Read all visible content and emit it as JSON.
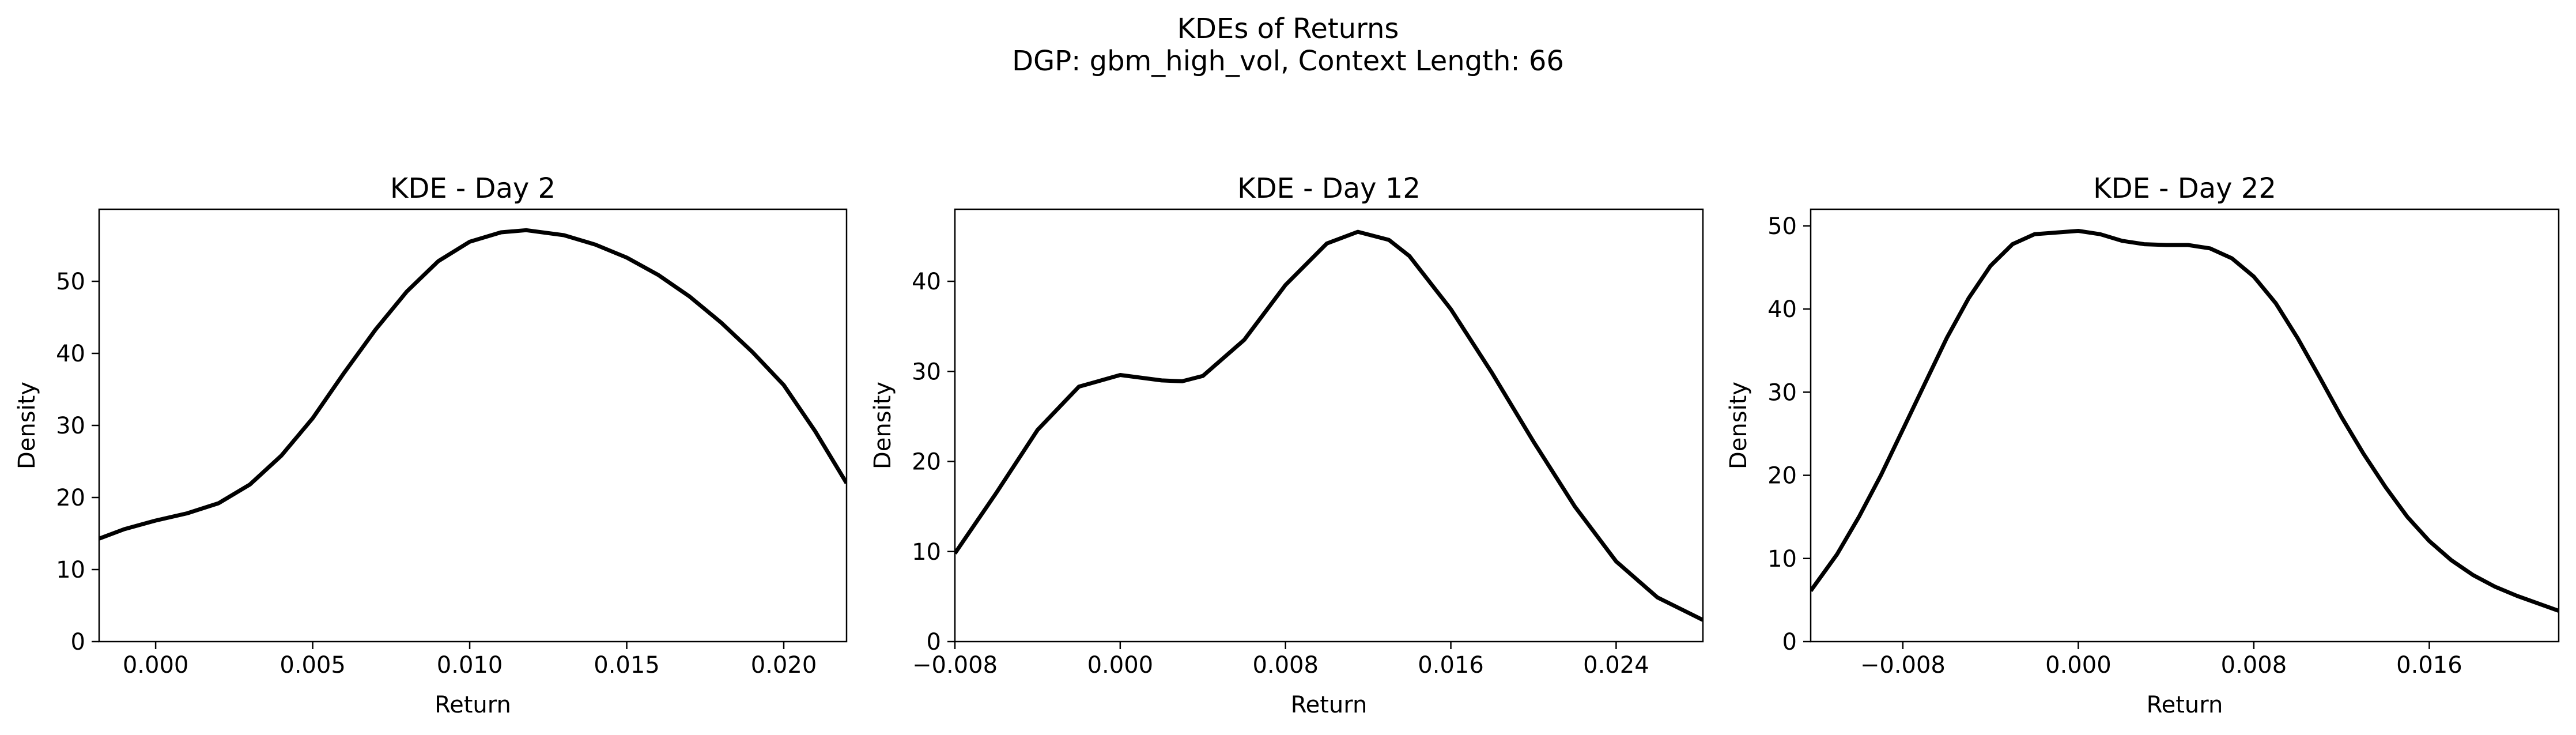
{
  "figure": {
    "title_line1": "KDEs of Returns",
    "title_line2": "DGP: gbm_high_vol, Context Length: 66"
  },
  "chart_data": [
    {
      "type": "line",
      "title": "KDE - Day 2",
      "xlabel": "Return",
      "ylabel": "Density",
      "xlim": [
        -0.0018,
        0.022
      ],
      "ylim": [
        0,
        60
      ],
      "xticks": [
        0.0,
        0.005,
        0.01,
        0.015,
        0.02
      ],
      "xtick_labels": [
        "0.000",
        "0.005",
        "0.010",
        "0.015",
        "0.020"
      ],
      "yticks": [
        0,
        10,
        20,
        30,
        40,
        50
      ],
      "ytick_labels": [
        "0",
        "10",
        "20",
        "30",
        "40",
        "50"
      ],
      "grid": false,
      "series": [
        {
          "color": "#000000",
          "x": [
            -0.0018,
            -0.001,
            0.0,
            0.001,
            0.002,
            0.003,
            0.004,
            0.005,
            0.006,
            0.007,
            0.008,
            0.009,
            0.01,
            0.011,
            0.0118,
            0.013,
            0.014,
            0.015,
            0.016,
            0.017,
            0.018,
            0.019,
            0.02,
            0.021,
            0.022
          ],
          "y": [
            14.3,
            15.6,
            16.8,
            17.8,
            19.2,
            21.8,
            25.8,
            31.0,
            37.3,
            43.3,
            48.6,
            52.8,
            55.5,
            56.8,
            57.1,
            56.4,
            55.1,
            53.3,
            50.9,
            47.9,
            44.3,
            40.2,
            35.6,
            29.2,
            22.0
          ]
        }
      ]
    },
    {
      "type": "line",
      "title": "KDE - Day 12",
      "xlabel": "Return",
      "ylabel": "Density",
      "xlim": [
        -0.008,
        0.0282
      ],
      "ylim": [
        0,
        48
      ],
      "xticks": [
        -0.008,
        0.0,
        0.008,
        0.016,
        0.024
      ],
      "xtick_labels": [
        "−0.008",
        "0.000",
        "0.008",
        "0.016",
        "0.024"
      ],
      "yticks": [
        0,
        10,
        20,
        30,
        40
      ],
      "ytick_labels": [
        "0",
        "10",
        "20",
        "30",
        "40"
      ],
      "grid": false,
      "series": [
        {
          "color": "#000000",
          "x": [
            -0.008,
            -0.006,
            -0.004,
            -0.002,
            0.0,
            0.002,
            0.003,
            0.004,
            0.006,
            0.008,
            0.01,
            0.0115,
            0.013,
            0.014,
            0.016,
            0.018,
            0.02,
            0.022,
            0.024,
            0.026,
            0.0282
          ],
          "y": [
            9.8,
            16.5,
            23.5,
            28.3,
            29.6,
            29.0,
            28.9,
            29.5,
            33.5,
            39.6,
            44.2,
            45.5,
            44.6,
            42.8,
            36.9,
            29.8,
            22.2,
            15.0,
            8.9,
            4.9,
            2.4
          ]
        }
      ]
    },
    {
      "type": "line",
      "title": "KDE - Day 22",
      "xlabel": "Return",
      "ylabel": "Density",
      "xlim": [
        -0.0122,
        0.0219
      ],
      "ylim": [
        0,
        52
      ],
      "xticks": [
        -0.008,
        0.0,
        0.008,
        0.016
      ],
      "xtick_labels": [
        "−0.008",
        "0.000",
        "0.008",
        "0.016"
      ],
      "yticks": [
        0,
        10,
        20,
        30,
        40,
        50
      ],
      "ytick_labels": [
        "0",
        "10",
        "20",
        "30",
        "40",
        "50"
      ],
      "grid": false,
      "series": [
        {
          "color": "#000000",
          "x": [
            -0.0122,
            -0.011,
            -0.01,
            -0.009,
            -0.008,
            -0.007,
            -0.006,
            -0.005,
            -0.004,
            -0.003,
            -0.002,
            -0.001,
            0.0,
            0.001,
            0.002,
            0.003,
            0.004,
            0.005,
            0.006,
            0.007,
            0.008,
            0.009,
            0.01,
            0.011,
            0.012,
            0.013,
            0.014,
            0.015,
            0.016,
            0.017,
            0.018,
            0.019,
            0.02,
            0.0219
          ],
          "y": [
            6.1,
            10.5,
            15.0,
            20.0,
            25.5,
            31.0,
            36.5,
            41.3,
            45.2,
            47.8,
            49.0,
            49.2,
            49.4,
            49.0,
            48.2,
            47.8,
            47.7,
            47.7,
            47.3,
            46.1,
            43.9,
            40.7,
            36.5,
            31.8,
            27.0,
            22.6,
            18.6,
            15.0,
            12.1,
            9.8,
            8.0,
            6.6,
            5.5,
            3.7
          ]
        }
      ]
    }
  ]
}
